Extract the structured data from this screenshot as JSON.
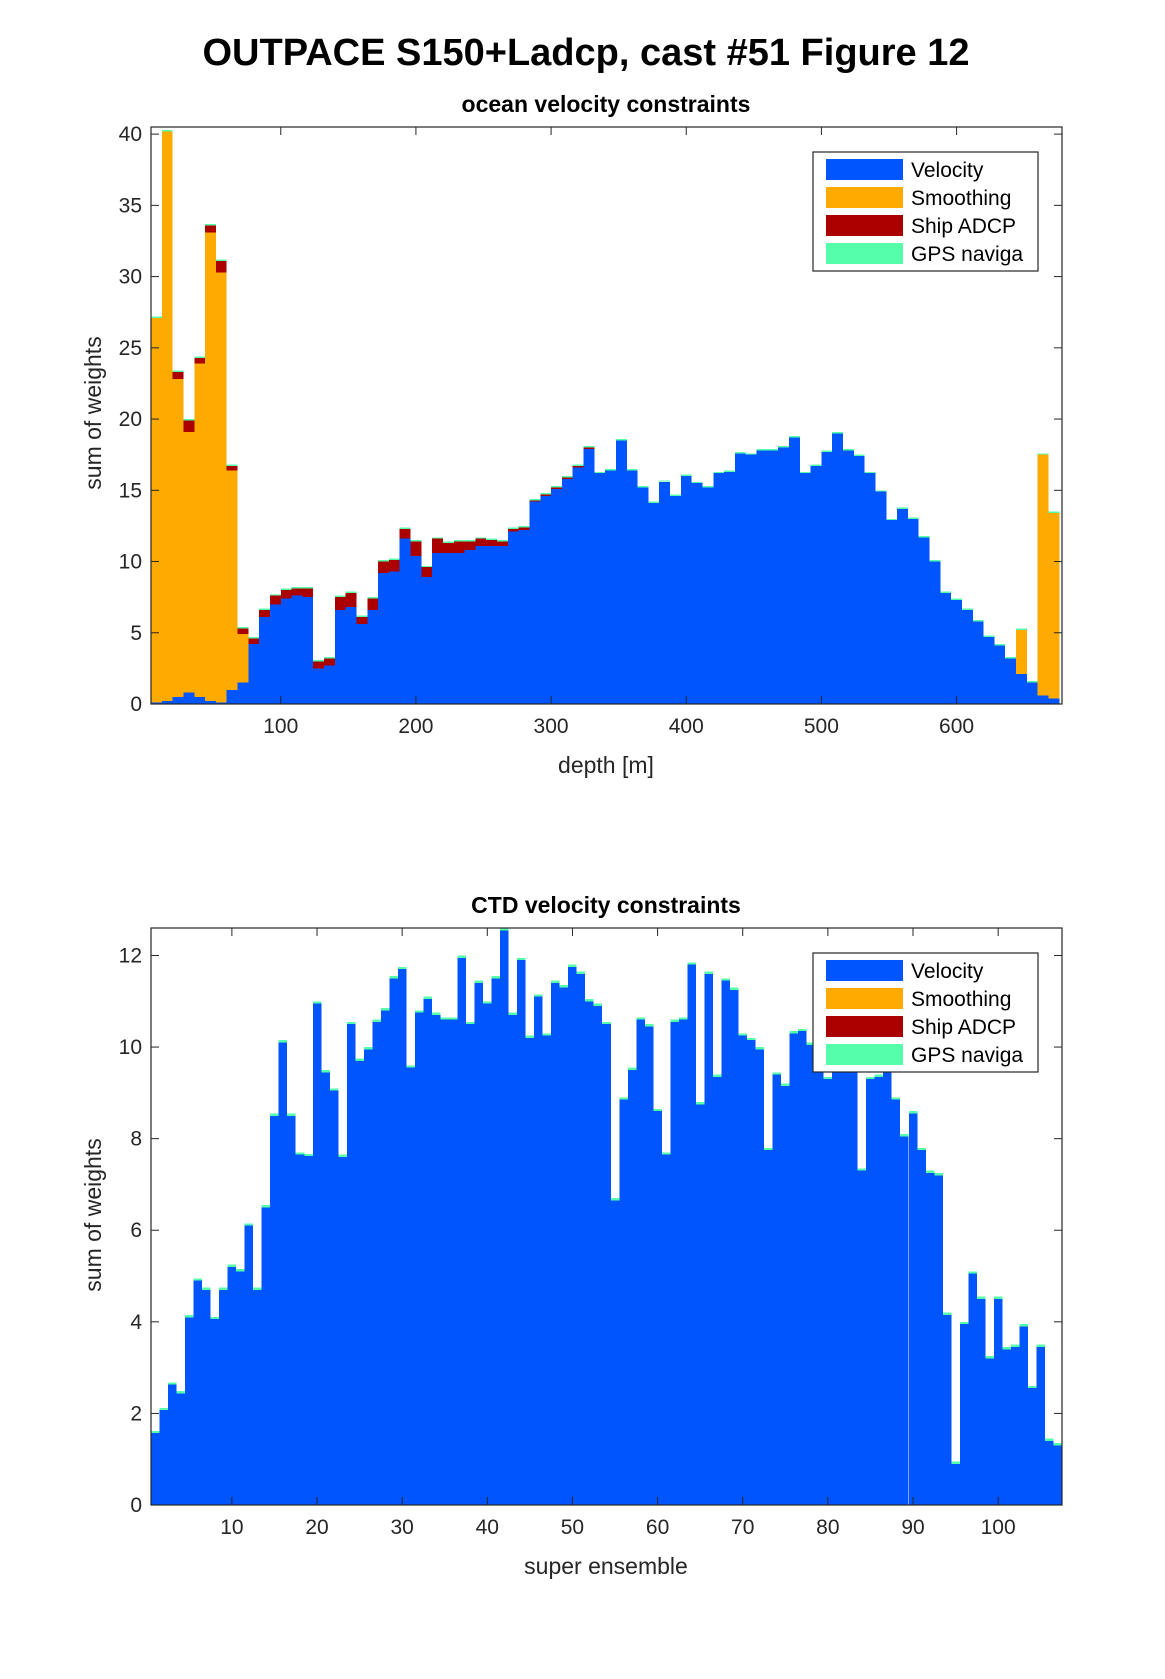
{
  "figure_title": "OUTPACE S150+Ladcp, cast #51  Figure 12",
  "colors": {
    "velocity": "#0055ff",
    "smoothing": "#ffaa00",
    "ship_adcp": "#aa0000",
    "gps_naviga": "#55ffaa"
  },
  "chart_data": [
    {
      "type": "bar",
      "stacked": true,
      "title": "ocean velocity constraints",
      "xlabel": "depth [m]",
      "ylabel": "sum of weights",
      "xlim": [
        4,
        678
      ],
      "ylim": [
        0,
        40.5
      ],
      "xticks": [
        100,
        200,
        300,
        400,
        500,
        600
      ],
      "yticks": [
        0,
        5,
        10,
        15,
        20,
        25,
        30,
        35,
        40
      ],
      "legend_position": "top-right",
      "bin_width": 8,
      "x": [
        8,
        16,
        24,
        32,
        40,
        48,
        56,
        64,
        72,
        80,
        88,
        96,
        104,
        112,
        120,
        128,
        136,
        144,
        152,
        160,
        168,
        176,
        184,
        192,
        200,
        208,
        216,
        224,
        232,
        240,
        248,
        256,
        264,
        272,
        280,
        288,
        296,
        304,
        312,
        320,
        328,
        336,
        344,
        352,
        360,
        368,
        376,
        384,
        392,
        400,
        408,
        416,
        424,
        432,
        440,
        448,
        456,
        464,
        472,
        480,
        488,
        496,
        504,
        512,
        520,
        528,
        536,
        544,
        552,
        560,
        568,
        576,
        584,
        592,
        600,
        608,
        616,
        624,
        632,
        640,
        648,
        656,
        664,
        672
      ],
      "series": [
        {
          "name": "Velocity",
          "values": [
            0.1,
            0.2,
            0.5,
            0.8,
            0.5,
            0.2,
            0.1,
            1.0,
            1.5,
            4.2,
            6.1,
            7.0,
            7.4,
            7.6,
            7.5,
            2.5,
            2.7,
            6.6,
            6.8,
            5.6,
            6.6,
            9.2,
            9.3,
            11.6,
            10.4,
            8.9,
            10.6,
            10.6,
            10.6,
            10.8,
            11.1,
            11.1,
            11.1,
            12.1,
            12.2,
            14.2,
            14.6,
            15.1,
            15.8,
            16.6,
            17.9,
            16.2,
            16.4,
            18.5,
            16.4,
            15.2,
            14.1,
            15.6,
            14.6,
            16.0,
            15.5,
            15.2,
            16.2,
            16.3,
            17.6,
            17.5,
            17.8,
            17.8,
            18.0,
            18.7,
            16.2,
            16.7,
            17.7,
            19.0,
            17.8,
            17.4,
            16.2,
            14.9,
            12.9,
            13.7,
            13.0,
            11.7,
            10.0,
            7.8,
            7.3,
            6.6,
            5.8,
            4.7,
            4.1,
            3.2,
            2.1,
            1.5,
            0.6,
            0.4
          ]
        },
        {
          "name": "Smoothing",
          "values": [
            27.0,
            40.0,
            22.3,
            18.3,
            23.4,
            32.9,
            30.2,
            15.4,
            3.4,
            0.0,
            0.0,
            0.0,
            0.0,
            0.0,
            0.0,
            0.0,
            0.0,
            0.0,
            0.0,
            0.0,
            0.0,
            0.0,
            0.0,
            0.0,
            0.0,
            0.0,
            0.0,
            0.0,
            0.0,
            0.0,
            0.0,
            0.0,
            0.0,
            0.0,
            0.0,
            0.0,
            0.0,
            0.0,
            0.0,
            0.0,
            0.0,
            0.0,
            0.0,
            0.0,
            0.0,
            0.0,
            0.0,
            0.0,
            0.0,
            0.0,
            0.0,
            0.0,
            0.0,
            0.0,
            0.0,
            0.0,
            0.0,
            0.0,
            0.0,
            0.0,
            0.0,
            0.0,
            0.0,
            0.0,
            0.0,
            0.0,
            0.0,
            0.0,
            0.0,
            0.0,
            0.0,
            0.0,
            0.0,
            0.0,
            0.0,
            0.0,
            0.0,
            0.0,
            0.0,
            0.0,
            3.1,
            0.0,
            16.9,
            13.0
          ]
        },
        {
          "name": "Ship ADCP",
          "values": [
            0.0,
            0.0,
            0.5,
            0.8,
            0.4,
            0.5,
            0.8,
            0.3,
            0.4,
            0.4,
            0.5,
            0.6,
            0.6,
            0.5,
            0.6,
            0.5,
            0.5,
            0.9,
            1.0,
            0.5,
            0.8,
            0.8,
            0.8,
            0.7,
            1.0,
            0.7,
            1.0,
            0.7,
            0.8,
            0.6,
            0.5,
            0.4,
            0.3,
            0.2,
            0.2,
            0.1,
            0.1,
            0.1,
            0.1,
            0.1,
            0.1,
            0.0,
            0.0,
            0.0,
            0.0,
            0.0,
            0.0,
            0.0,
            0.0,
            0.0,
            0.0,
            0.0,
            0.0,
            0.0,
            0.0,
            0.0,
            0.0,
            0.0,
            0.0,
            0.0,
            0.0,
            0.0,
            0.0,
            0.0,
            0.0,
            0.0,
            0.0,
            0.0,
            0.0,
            0.0,
            0.0,
            0.0,
            0.0,
            0.0,
            0.0,
            0.0,
            0.0,
            0.0,
            0.0,
            0.0,
            0.0,
            0.0,
            0.0,
            0.0
          ]
        },
        {
          "name": "GPS naviga",
          "values": [
            0.1,
            0.1,
            0.1,
            0.1,
            0.1,
            0.1,
            0.1,
            0.1,
            0.1,
            0.1,
            0.1,
            0.1,
            0.1,
            0.1,
            0.1,
            0.1,
            0.1,
            0.1,
            0.1,
            0.1,
            0.1,
            0.1,
            0.1,
            0.1,
            0.1,
            0.1,
            0.1,
            0.1,
            0.1,
            0.1,
            0.1,
            0.1,
            0.1,
            0.1,
            0.1,
            0.1,
            0.1,
            0.1,
            0.1,
            0.1,
            0.1,
            0.1,
            0.1,
            0.1,
            0.1,
            0.1,
            0.1,
            0.1,
            0.1,
            0.1,
            0.1,
            0.1,
            0.1,
            0.1,
            0.1,
            0.1,
            0.1,
            0.1,
            0.1,
            0.1,
            0.1,
            0.1,
            0.1,
            0.1,
            0.1,
            0.1,
            0.1,
            0.1,
            0.1,
            0.1,
            0.1,
            0.1,
            0.1,
            0.1,
            0.1,
            0.1,
            0.1,
            0.1,
            0.1,
            0.1,
            0.1,
            0.1,
            0.1,
            0.1
          ]
        }
      ]
    },
    {
      "type": "bar",
      "stacked": true,
      "title": "CTD velocity constraints",
      "xlabel": "super ensemble",
      "ylabel": "sum of weights",
      "xlim": [
        0.5,
        107.5
      ],
      "ylim": [
        0,
        12.6
      ],
      "xticks": [
        10,
        20,
        30,
        40,
        50,
        60,
        70,
        80,
        90,
        100
      ],
      "yticks": [
        0,
        2,
        4,
        6,
        8,
        10,
        12
      ],
      "legend_position": "top-right",
      "bin_width": 1,
      "x": [
        1,
        2,
        3,
        4,
        5,
        6,
        7,
        8,
        9,
        10,
        11,
        12,
        13,
        14,
        15,
        16,
        17,
        18,
        19,
        20,
        21,
        22,
        23,
        24,
        25,
        26,
        27,
        28,
        29,
        30,
        31,
        32,
        33,
        34,
        35,
        36,
        37,
        38,
        39,
        40,
        41,
        42,
        43,
        44,
        45,
        46,
        47,
        48,
        49,
        50,
        51,
        52,
        53,
        54,
        55,
        56,
        57,
        58,
        59,
        60,
        61,
        62,
        63,
        64,
        65,
        66,
        67,
        68,
        69,
        70,
        71,
        72,
        73,
        74,
        75,
        76,
        77,
        78,
        79,
        80,
        81,
        82,
        83,
        84,
        85,
        86,
        87,
        88,
        89,
        90,
        91,
        92,
        93,
        94,
        95,
        96,
        97,
        98,
        99,
        100,
        101,
        102,
        103,
        104,
        105,
        106,
        107
      ],
      "series": [
        {
          "name": "Velocity",
          "values": [
            1.57,
            2.07,
            2.63,
            2.44,
            4.1,
            4.9,
            4.7,
            4.06,
            4.7,
            5.2,
            5.1,
            6.1,
            4.7,
            6.5,
            8.5,
            10.1,
            8.5,
            7.65,
            7.62,
            10.95,
            9.45,
            9.05,
            7.6,
            10.5,
            9.7,
            9.95,
            10.55,
            10.8,
            11.5,
            11.7,
            9.55,
            10.75,
            11.05,
            10.7,
            10.6,
            10.6,
            11.95,
            10.5,
            11.4,
            10.95,
            11.5,
            12.55,
            10.7,
            11.9,
            10.2,
            11.1,
            10.25,
            11.4,
            11.3,
            11.75,
            11.6,
            11.0,
            10.9,
            10.5,
            6.65,
            8.85,
            9.5,
            10.6,
            10.45,
            8.6,
            7.65,
            10.55,
            10.6,
            11.8,
            8.75,
            11.6,
            9.35,
            11.45,
            11.25,
            10.25,
            10.15,
            9.95,
            7.75,
            9.4,
            9.15,
            10.3,
            10.35,
            10.05,
            11.3,
            9.3,
            9.8,
            9.65,
            9.95,
            7.3,
            9.3,
            9.35,
            9.5,
            8.85,
            8.05,
            8.55,
            7.75,
            7.25,
            7.2,
            4.15,
            0.9,
            3.95,
            5.05,
            4.5,
            3.2,
            4.5,
            3.4,
            3.45,
            3.9,
            2.55,
            3.45,
            1.4,
            1.3
          ]
        },
        {
          "name": "Smoothing",
          "values": [
            0,
            0,
            0,
            0,
            0,
            0,
            0,
            0,
            0,
            0,
            0,
            0,
            0,
            0,
            0,
            0,
            0,
            0,
            0,
            0,
            0,
            0,
            0,
            0,
            0,
            0,
            0,
            0,
            0,
            0,
            0,
            0,
            0,
            0,
            0,
            0,
            0,
            0,
            0,
            0,
            0,
            0,
            0,
            0,
            0,
            0,
            0,
            0,
            0,
            0,
            0,
            0,
            0,
            0,
            0,
            0,
            0,
            0,
            0,
            0,
            0,
            0,
            0,
            0,
            0,
            0,
            0,
            0,
            0,
            0,
            0,
            0,
            0,
            0,
            0,
            0,
            0,
            0,
            0,
            0,
            0,
            0,
            0,
            0,
            0,
            0,
            0,
            0,
            0,
            0,
            0,
            0,
            0,
            0,
            0,
            0,
            0,
            0,
            0,
            0,
            0,
            0,
            0,
            0,
            0,
            0,
            0
          ]
        },
        {
          "name": "Ship ADCP",
          "values": [
            0,
            0,
            0,
            0,
            0,
            0,
            0,
            0,
            0,
            0,
            0,
            0,
            0,
            0,
            0,
            0,
            0,
            0,
            0,
            0,
            0,
            0,
            0,
            0,
            0,
            0,
            0,
            0,
            0,
            0,
            0,
            0,
            0,
            0,
            0,
            0,
            0,
            0,
            0,
            0,
            0,
            0,
            0,
            0,
            0,
            0,
            0,
            0,
            0,
            0,
            0,
            0,
            0,
            0,
            0,
            0,
            0,
            0,
            0,
            0,
            0,
            0,
            0,
            0,
            0,
            0,
            0,
            0,
            0,
            0,
            0,
            0,
            0,
            0,
            0,
            0,
            0,
            0,
            0,
            0,
            0,
            0,
            0,
            0,
            0,
            0,
            0,
            0,
            0,
            0,
            0,
            0,
            0,
            0,
            0,
            0,
            0,
            0,
            0,
            0,
            0,
            0,
            0,
            0,
            0,
            0,
            0
          ]
        },
        {
          "name": "GPS naviga",
          "values": [
            0.05,
            0.05,
            0.05,
            0.05,
            0.05,
            0.05,
            0.05,
            0.05,
            0.05,
            0.05,
            0.05,
            0.05,
            0.05,
            0.05,
            0.05,
            0.05,
            0.05,
            0.05,
            0.05,
            0.05,
            0.05,
            0.05,
            0.05,
            0.05,
            0.05,
            0.05,
            0.05,
            0.05,
            0.05,
            0.05,
            0.05,
            0.05,
            0.05,
            0.05,
            0.05,
            0.05,
            0.05,
            0.05,
            0.05,
            0.05,
            0.05,
            0.05,
            0.05,
            0.05,
            0.05,
            0.05,
            0.05,
            0.05,
            0.05,
            0.05,
            0.05,
            0.05,
            0.05,
            0.05,
            0.05,
            0.05,
            0.05,
            0.05,
            0.05,
            0.05,
            0.05,
            0.05,
            0.05,
            0.05,
            0.05,
            0.05,
            0.05,
            0.05,
            0.05,
            0.05,
            0.05,
            0.05,
            0.05,
            0.05,
            0.05,
            0.05,
            0.05,
            0.05,
            0.05,
            0.05,
            0.05,
            0.05,
            0.05,
            0.05,
            0.05,
            0.05,
            0.05,
            0.05,
            0.05,
            0.05,
            0.05,
            0.05,
            0.05,
            0.05,
            0.05,
            0.05,
            0.05,
            0.05,
            0.05,
            0.05,
            0.05,
            0.05,
            0.05,
            0.05,
            0.05,
            0.05,
            0.05
          ]
        }
      ]
    }
  ]
}
